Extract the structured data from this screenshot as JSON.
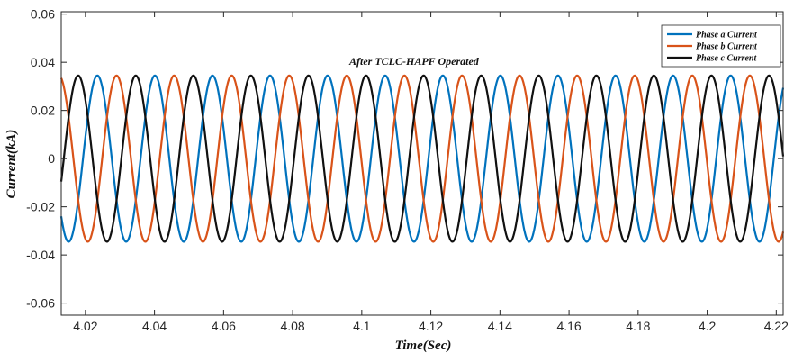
{
  "chart_data": {
    "type": "line",
    "title": "",
    "annotation": "After TCLC-HAPF Operated",
    "xlabel": "Time(Sec)",
    "ylabel": "Current(kA)",
    "xlim": [
      4.013,
      4.222
    ],
    "ylim": [
      -0.065,
      0.061
    ],
    "x_ticks": [
      "4.02",
      "4.04",
      "4.06",
      "4.08",
      "4.1",
      "4.12",
      "4.14",
      "4.16",
      "4.18",
      "4.2",
      "4.22"
    ],
    "y_ticks": [
      "0.06",
      "0.04",
      "0.02",
      "0",
      "-0.02",
      "-0.04",
      "-0.06"
    ],
    "grid": false,
    "legend_position": "top-right",
    "frequency_hz": 60,
    "series": [
      {
        "name": "Phase a Current",
        "color": "#0072BD",
        "amplitude_kA": 0.0345,
        "phase_deg": 0
      },
      {
        "name": "Phase b Current",
        "color": "#D95319",
        "amplitude_kA": 0.0345,
        "phase_deg": -120
      },
      {
        "name": "Phase c Current",
        "color": "#111111",
        "amplitude_kA": 0.0345,
        "phase_deg": 120
      }
    ]
  }
}
